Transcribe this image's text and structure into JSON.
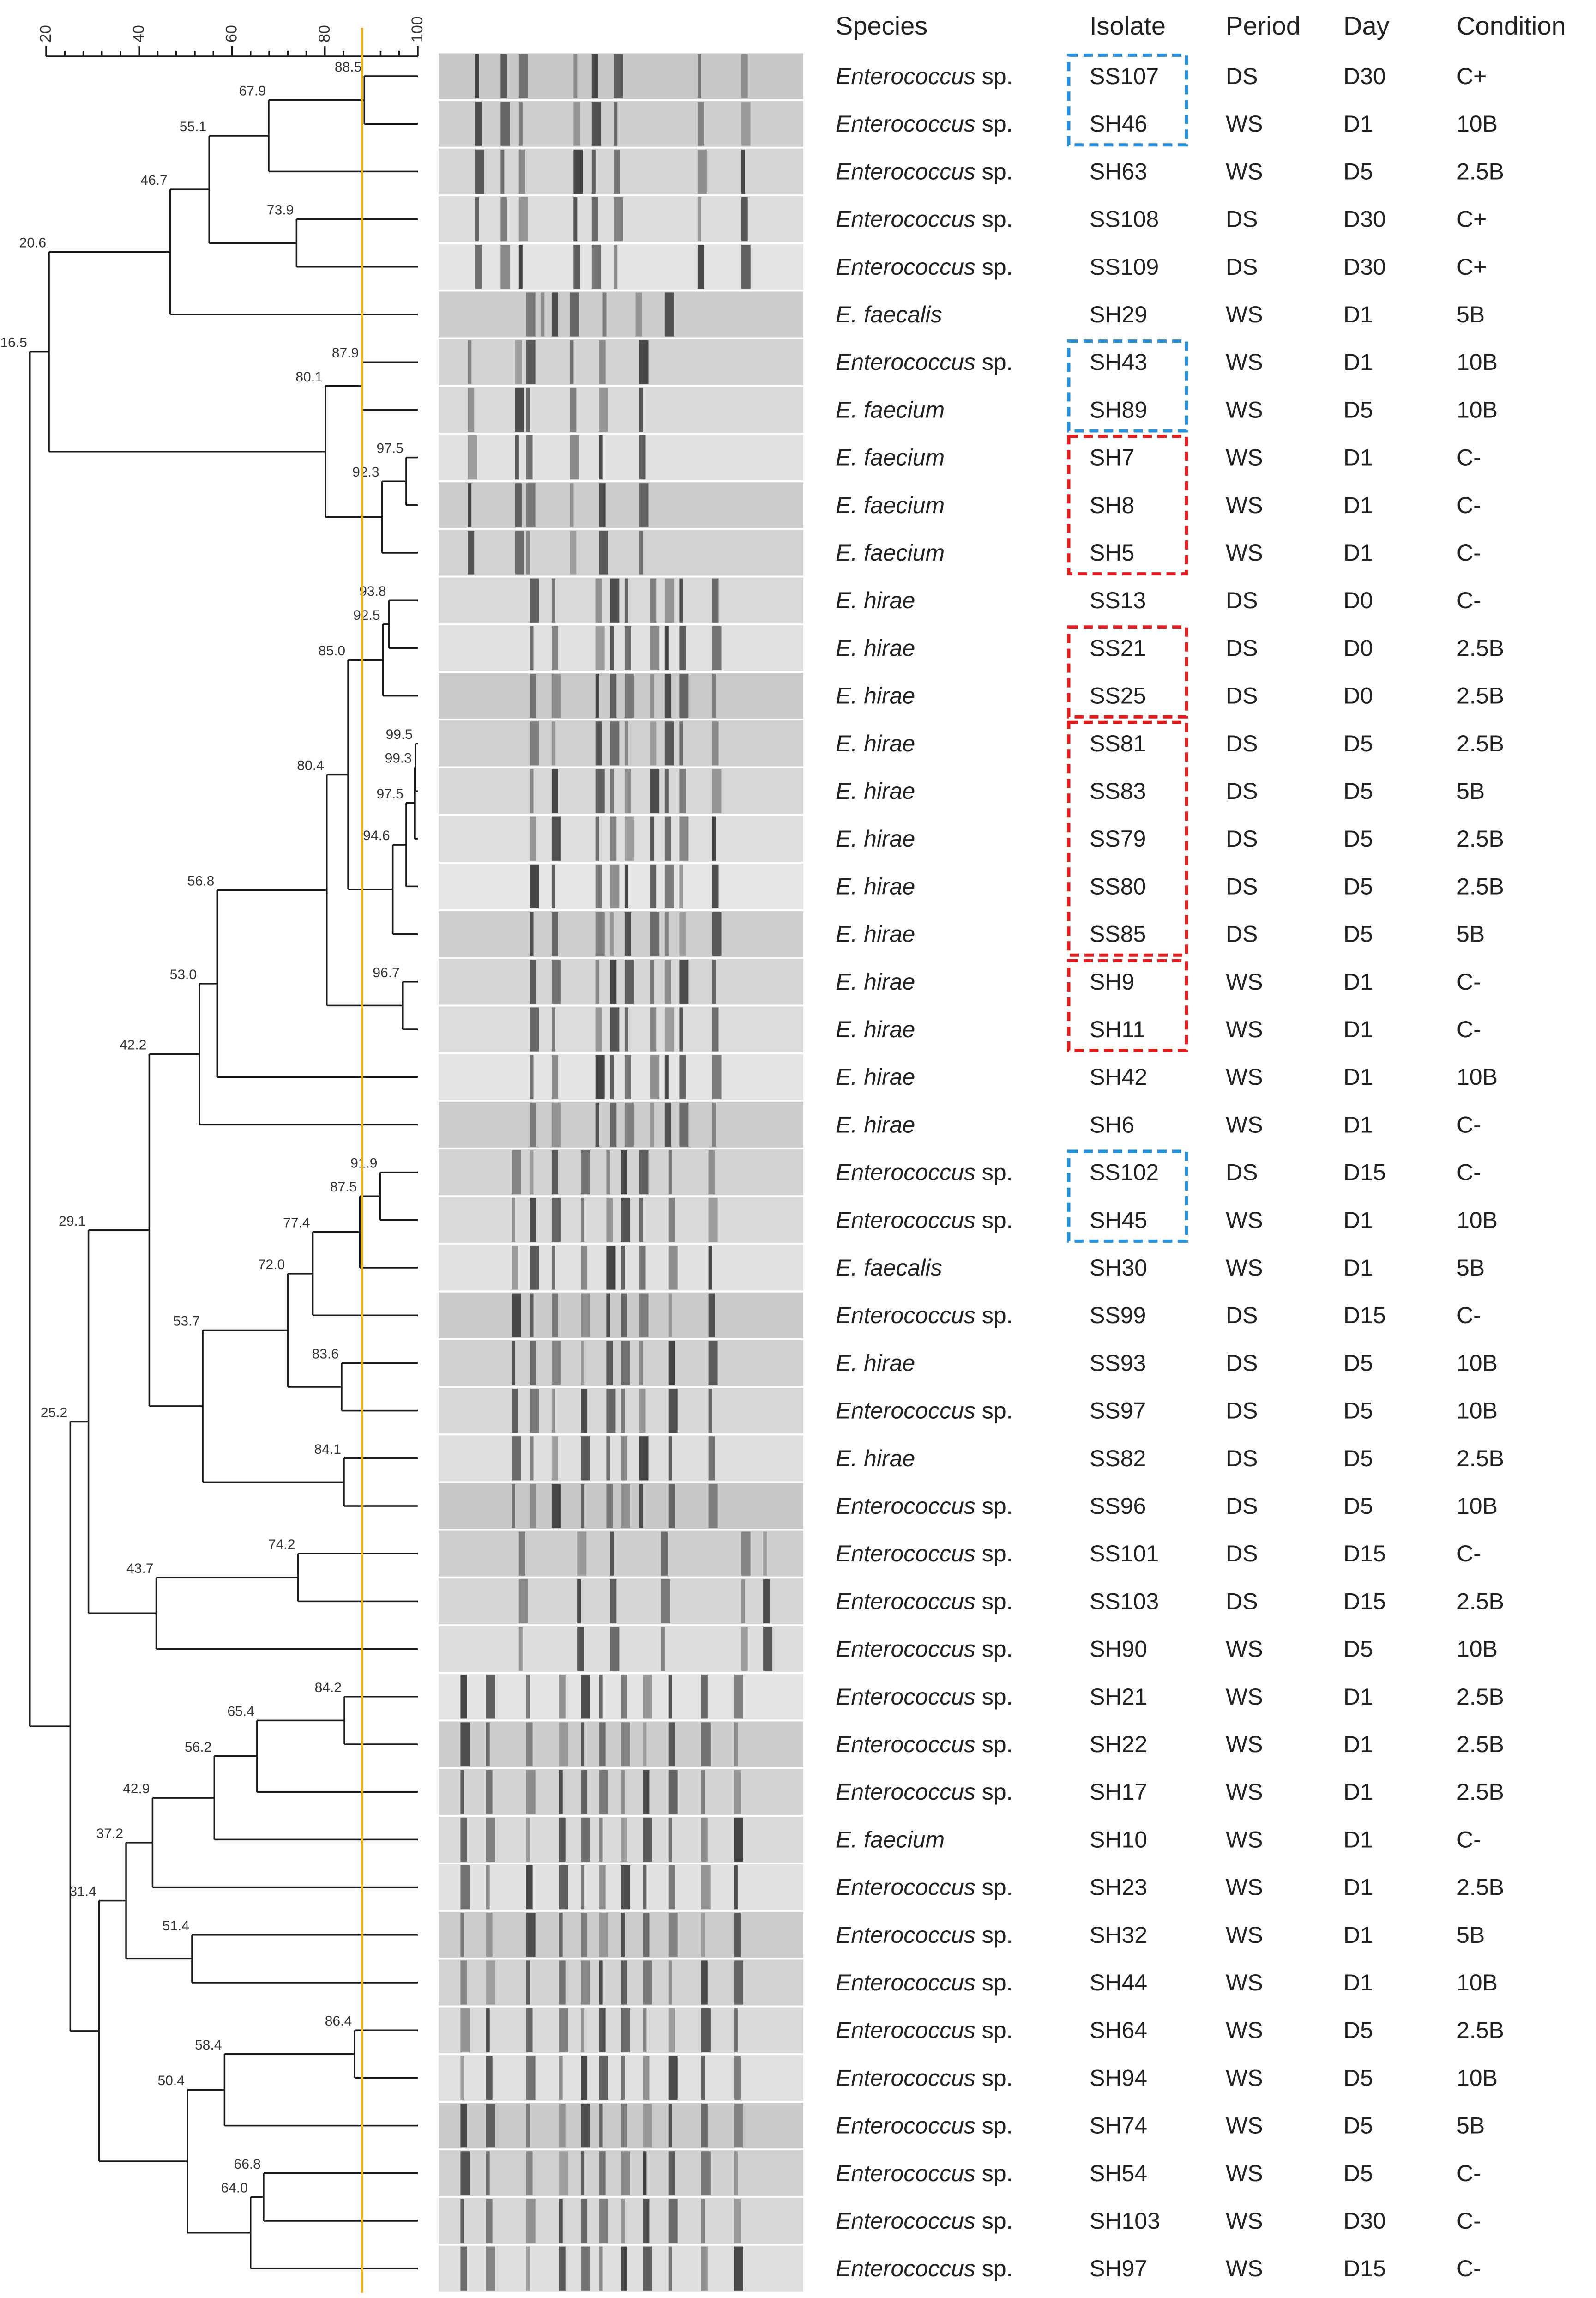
{
  "header": {
    "species": "Species",
    "isolate": "Isolate",
    "period": "Period",
    "day": "Day",
    "condition": "Condition"
  },
  "scale": {
    "min": 20,
    "max": 100,
    "ticks": [
      "20",
      "40",
      "60",
      "80",
      "100"
    ]
  },
  "cutoff": {
    "similarity": 88,
    "color": "#e8b52a"
  },
  "colors": {
    "blue_box": "#2a8fd6",
    "red_box": "#e02020",
    "line": "#1a1a1a"
  },
  "rows": [
    {
      "species": "Enterococcus",
      "sp": true,
      "isolate": "SS107",
      "period": "DS",
      "day": "D30",
      "condition": "C+"
    },
    {
      "species": "Enterococcus",
      "sp": true,
      "isolate": "SH46",
      "period": "WS",
      "day": "D1",
      "condition": "10B"
    },
    {
      "species": "Enterococcus",
      "sp": true,
      "isolate": "SH63",
      "period": "WS",
      "day": "D5",
      "condition": "2.5B"
    },
    {
      "species": "Enterococcus",
      "sp": true,
      "isolate": "SS108",
      "period": "DS",
      "day": "D30",
      "condition": "C+"
    },
    {
      "species": "Enterococcus",
      "sp": true,
      "isolate": "SS109",
      "period": "DS",
      "day": "D30",
      "condition": "C+"
    },
    {
      "species": "E. faecalis",
      "sp": false,
      "isolate": "SH29",
      "period": "WS",
      "day": "D1",
      "condition": "5B"
    },
    {
      "species": "Enterococcus",
      "sp": true,
      "isolate": "SH43",
      "period": "WS",
      "day": "D1",
      "condition": "10B"
    },
    {
      "species": "E. faecium",
      "sp": false,
      "isolate": "SH89",
      "period": "WS",
      "day": "D5",
      "condition": "10B"
    },
    {
      "species": "E. faecium",
      "sp": false,
      "isolate": "SH7",
      "period": "WS",
      "day": "D1",
      "condition": "C-"
    },
    {
      "species": "E. faecium",
      "sp": false,
      "isolate": "SH8",
      "period": "WS",
      "day": "D1",
      "condition": "C-"
    },
    {
      "species": "E. faecium",
      "sp": false,
      "isolate": "SH5",
      "period": "WS",
      "day": "D1",
      "condition": "C-"
    },
    {
      "species": "E. hirae",
      "sp": false,
      "isolate": "SS13",
      "period": "DS",
      "day": "D0",
      "condition": "C-"
    },
    {
      "species": "E. hirae",
      "sp": false,
      "isolate": "SS21",
      "period": "DS",
      "day": "D0",
      "condition": "2.5B"
    },
    {
      "species": "E. hirae",
      "sp": false,
      "isolate": "SS25",
      "period": "DS",
      "day": "D0",
      "condition": "2.5B"
    },
    {
      "species": "E. hirae",
      "sp": false,
      "isolate": "SS81",
      "period": "DS",
      "day": "D5",
      "condition": "2.5B"
    },
    {
      "species": "E. hirae",
      "sp": false,
      "isolate": "SS83",
      "period": "DS",
      "day": "D5",
      "condition": "5B"
    },
    {
      "species": "E. hirae",
      "sp": false,
      "isolate": "SS79",
      "period": "DS",
      "day": "D5",
      "condition": "2.5B"
    },
    {
      "species": "E. hirae",
      "sp": false,
      "isolate": "SS80",
      "period": "DS",
      "day": "D5",
      "condition": "2.5B"
    },
    {
      "species": "E. hirae",
      "sp": false,
      "isolate": "SS85",
      "period": "DS",
      "day": "D5",
      "condition": "5B"
    },
    {
      "species": "E. hirae",
      "sp": false,
      "isolate": "SH9",
      "period": "WS",
      "day": "D1",
      "condition": "C-"
    },
    {
      "species": "E. hirae",
      "sp": false,
      "isolate": "SH11",
      "period": "WS",
      "day": "D1",
      "condition": "C-"
    },
    {
      "species": "E. hirae",
      "sp": false,
      "isolate": "SH42",
      "period": "WS",
      "day": "D1",
      "condition": "10B"
    },
    {
      "species": "E. hirae",
      "sp": false,
      "isolate": "SH6",
      "period": "WS",
      "day": "D1",
      "condition": "C-"
    },
    {
      "species": "Enterococcus",
      "sp": true,
      "isolate": "SS102",
      "period": "DS",
      "day": "D15",
      "condition": "C-"
    },
    {
      "species": "Enterococcus",
      "sp": true,
      "isolate": "SH45",
      "period": "WS",
      "day": "D1",
      "condition": "10B"
    },
    {
      "species": "E. faecalis",
      "sp": false,
      "isolate": "SH30",
      "period": "WS",
      "day": "D1",
      "condition": "5B"
    },
    {
      "species": "Enterococcus",
      "sp": true,
      "isolate": "SS99",
      "period": "DS",
      "day": "D15",
      "condition": "C-"
    },
    {
      "species": "E. hirae",
      "sp": false,
      "isolate": "SS93",
      "period": "DS",
      "day": "D5",
      "condition": "10B"
    },
    {
      "species": "Enterococcus",
      "sp": true,
      "isolate": "SS97",
      "period": "DS",
      "day": "D5",
      "condition": "10B"
    },
    {
      "species": "E. hirae",
      "sp": false,
      "isolate": "SS82",
      "period": "DS",
      "day": "D5",
      "condition": "2.5B"
    },
    {
      "species": "Enterococcus",
      "sp": true,
      "isolate": "SS96",
      "period": "DS",
      "day": "D5",
      "condition": "10B"
    },
    {
      "species": "Enterococcus",
      "sp": true,
      "isolate": "SS101",
      "period": "DS",
      "day": "D15",
      "condition": "C-"
    },
    {
      "species": "Enterococcus",
      "sp": true,
      "isolate": "SS103",
      "period": "DS",
      "day": "D15",
      "condition": "2.5B"
    },
    {
      "species": "Enterococcus",
      "sp": true,
      "isolate": "SH90",
      "period": "WS",
      "day": "D5",
      "condition": "10B"
    },
    {
      "species": "Enterococcus",
      "sp": true,
      "isolate": "SH21",
      "period": "WS",
      "day": "D1",
      "condition": "2.5B"
    },
    {
      "species": "Enterococcus",
      "sp": true,
      "isolate": "SH22",
      "period": "WS",
      "day": "D1",
      "condition": "2.5B"
    },
    {
      "species": "Enterococcus",
      "sp": true,
      "isolate": "SH17",
      "period": "WS",
      "day": "D1",
      "condition": "2.5B"
    },
    {
      "species": "E. faecium",
      "sp": false,
      "isolate": "SH10",
      "period": "WS",
      "day": "D1",
      "condition": "C-"
    },
    {
      "species": "Enterococcus",
      "sp": true,
      "isolate": "SH23",
      "period": "WS",
      "day": "D1",
      "condition": "2.5B"
    },
    {
      "species": "Enterococcus",
      "sp": true,
      "isolate": "SH32",
      "period": "WS",
      "day": "D1",
      "condition": "5B"
    },
    {
      "species": "Enterococcus",
      "sp": true,
      "isolate": "SH44",
      "period": "WS",
      "day": "D1",
      "condition": "10B"
    },
    {
      "species": "Enterococcus",
      "sp": true,
      "isolate": "SH64",
      "period": "WS",
      "day": "D5",
      "condition": "2.5B"
    },
    {
      "species": "Enterococcus",
      "sp": true,
      "isolate": "SH94",
      "period": "WS",
      "day": "D5",
      "condition": "10B"
    },
    {
      "species": "Enterococcus",
      "sp": true,
      "isolate": "SH74",
      "period": "WS",
      "day": "D5",
      "condition": "5B"
    },
    {
      "species": "Enterococcus",
      "sp": true,
      "isolate": "SH54",
      "period": "WS",
      "day": "D5",
      "condition": "C-"
    },
    {
      "species": "Enterococcus",
      "sp": true,
      "isolate": "SH103",
      "period": "WS",
      "day": "D30",
      "condition": "C-"
    },
    {
      "species": "Enterococcus",
      "sp": true,
      "isolate": "SH97",
      "period": "WS",
      "day": "D15",
      "condition": "C-"
    }
  ],
  "species_suffix": " sp.",
  "tree": {
    "label": "16.5",
    "sim": 16.5,
    "children": [
      {
        "label": "20.6",
        "sim": 20.6,
        "children": [
          {
            "label": "46.7",
            "sim": 46.7,
            "children": [
              {
                "label": "55.1",
                "sim": 55.1,
                "children": [
                  {
                    "label": "67.9",
                    "sim": 67.9,
                    "children": [
                      {
                        "label": "88.5",
                        "sim": 88.5,
                        "children": [
                          0,
                          1
                        ]
                      },
                      2
                    ]
                  },
                  {
                    "label": "73.9",
                    "sim": 73.9,
                    "children": [
                      3,
                      4
                    ]
                  }
                ]
              },
              5
            ]
          },
          {
            "label": "80.1",
            "sim": 80.1,
            "children": [
              {
                "label": "87.9",
                "sim": 87.9,
                "children": [
                  6,
                  7
                ]
              },
              {
                "label": "92.3",
                "sim": 92.3,
                "children": [
                  {
                    "label": "97.5",
                    "sim": 97.5,
                    "children": [
                      8,
                      9
                    ]
                  },
                  10
                ]
              }
            ]
          }
        ]
      },
      {
        "label": "25.2",
        "sim": 25.2,
        "children": [
          {
            "label": "29.1",
            "sim": 29.1,
            "children": [
              {
                "label": "42.2",
                "sim": 42.2,
                "children": [
                  {
                    "label": "53.0",
                    "sim": 53.0,
                    "children": [
                      {
                        "label": "56.8",
                        "sim": 56.8,
                        "children": [
                          {
                            "label": "80.4",
                            "sim": 80.4,
                            "children": [
                              {
                                "label": "85.0",
                                "sim": 85.0,
                                "children": [
                                  {
                                    "label": "92.5",
                                    "sim": 92.5,
                                    "children": [
                                      {
                                        "label": "93.8",
                                        "sim": 93.8,
                                        "children": [
                                          11,
                                          12
                                        ]
                                      },
                                      13
                                    ]
                                  },
                                  {
                                    "label": "94.6",
                                    "sim": 94.6,
                                    "children": [
                                      {
                                        "label": "97.5",
                                        "sim": 97.5,
                                        "children": [
                                          {
                                            "label": "99.3",
                                            "sim": 99.3,
                                            "children": [
                                              {
                                                "label": "99.5",
                                                "sim": 99.5,
                                                "children": [
                                                  14,
                                                  15
                                                ]
                                              },
                                              16
                                            ]
                                          },
                                          17
                                        ]
                                      },
                                      18
                                    ]
                                  }
                                ]
                              },
                              {
                                "label": "96.7",
                                "sim": 96.7,
                                "children": [
                                  19,
                                  20
                                ]
                              }
                            ]
                          },
                          21
                        ]
                      },
                      22
                    ]
                  },
                  {
                    "label": "53.7",
                    "sim": 53.7,
                    "children": [
                      {
                        "label": "72.0",
                        "sim": 72.0,
                        "children": [
                          {
                            "label": "77.4",
                            "sim": 77.4,
                            "children": [
                              {
                                "label": "87.5",
                                "sim": 87.5,
                                "children": [
                                  {
                                    "label": "91.9",
                                    "sim": 91.9,
                                    "children": [
                                      23,
                                      24
                                    ]
                                  },
                                  25
                                ]
                              },
                              26
                            ]
                          },
                          {
                            "label": "83.6",
                            "sim": 83.6,
                            "children": [
                              27,
                              28
                            ]
                          }
                        ]
                      },
                      {
                        "label": "84.1",
                        "sim": 84.1,
                        "children": [
                          29,
                          30
                        ]
                      }
                    ]
                  }
                ]
              },
              {
                "label": "43.7",
                "sim": 43.7,
                "children": [
                  {
                    "label": "74.2",
                    "sim": 74.2,
                    "children": [
                      31,
                      32
                    ]
                  },
                  33
                ]
              }
            ]
          },
          {
            "label": "31.4",
            "sim": 31.4,
            "children": [
              {
                "label": "37.2",
                "sim": 37.2,
                "children": [
                  {
                    "label": "42.9",
                    "sim": 42.9,
                    "children": [
                      {
                        "label": "56.2",
                        "sim": 56.2,
                        "children": [
                          {
                            "label": "65.4",
                            "sim": 65.4,
                            "children": [
                              {
                                "label": "84.2",
                                "sim": 84.2,
                                "children": [
                                  34,
                                  35
                                ]
                              },
                              36
                            ]
                          },
                          37
                        ]
                      },
                      38
                    ]
                  },
                  {
                    "label": "51.4",
                    "sim": 51.4,
                    "children": [
                      39,
                      40
                    ]
                  }
                ]
              },
              {
                "label": "50.4",
                "sim": 50.4,
                "children": [
                  {
                    "label": "58.4",
                    "sim": 58.4,
                    "children": [
                      {
                        "label": "86.4",
                        "sim": 86.4,
                        "children": [
                          41,
                          42
                        ]
                      },
                      43
                    ]
                  },
                  {
                    "label": "64.0",
                    "sim": 64.0,
                    "children": [
                      {
                        "label": "66.8",
                        "sim": 66.8,
                        "children": [
                          44,
                          45
                        ]
                      },
                      46
                    ]
                  }
                ]
              }
            ]
          }
        ]
      }
    ]
  },
  "boxes": [
    {
      "color": "blue",
      "from": 0,
      "to": 1
    },
    {
      "color": "blue",
      "from": 6,
      "to": 7
    },
    {
      "color": "red",
      "from": 8,
      "to": 10
    },
    {
      "color": "red",
      "from": 12,
      "to": 13
    },
    {
      "color": "red",
      "from": 14,
      "to": 18
    },
    {
      "color": "red",
      "from": 19,
      "to": 20
    },
    {
      "color": "blue",
      "from": 23,
      "to": 24
    }
  ],
  "bands": [
    {
      "lanes": [
        0,
        4
      ],
      "positions": [
        0.1,
        0.17,
        0.22,
        0.37,
        0.42,
        0.48,
        0.71,
        0.83
      ]
    },
    {
      "lanes": [
        5,
        5
      ],
      "positions": [
        0.24,
        0.28,
        0.31,
        0.36,
        0.45,
        0.54,
        0.62
      ]
    },
    {
      "lanes": [
        6,
        10
      ],
      "positions": [
        0.08,
        0.21,
        0.24,
        0.36,
        0.44,
        0.55
      ]
    },
    {
      "lanes": [
        11,
        22
      ],
      "positions": [
        0.25,
        0.31,
        0.43,
        0.47,
        0.51,
        0.58,
        0.62,
        0.66,
        0.75
      ]
    },
    {
      "lanes": [
        23,
        30
      ],
      "positions": [
        0.2,
        0.25,
        0.31,
        0.39,
        0.46,
        0.5,
        0.55,
        0.63,
        0.74
      ]
    },
    {
      "lanes": [
        31,
        33
      ],
      "positions": [
        0.22,
        0.38,
        0.47,
        0.61,
        0.83,
        0.89
      ]
    },
    {
      "lanes": [
        34,
        46
      ],
      "positions": [
        0.06,
        0.13,
        0.24,
        0.33,
        0.39,
        0.44,
        0.5,
        0.56,
        0.63,
        0.72,
        0.81
      ]
    }
  ]
}
